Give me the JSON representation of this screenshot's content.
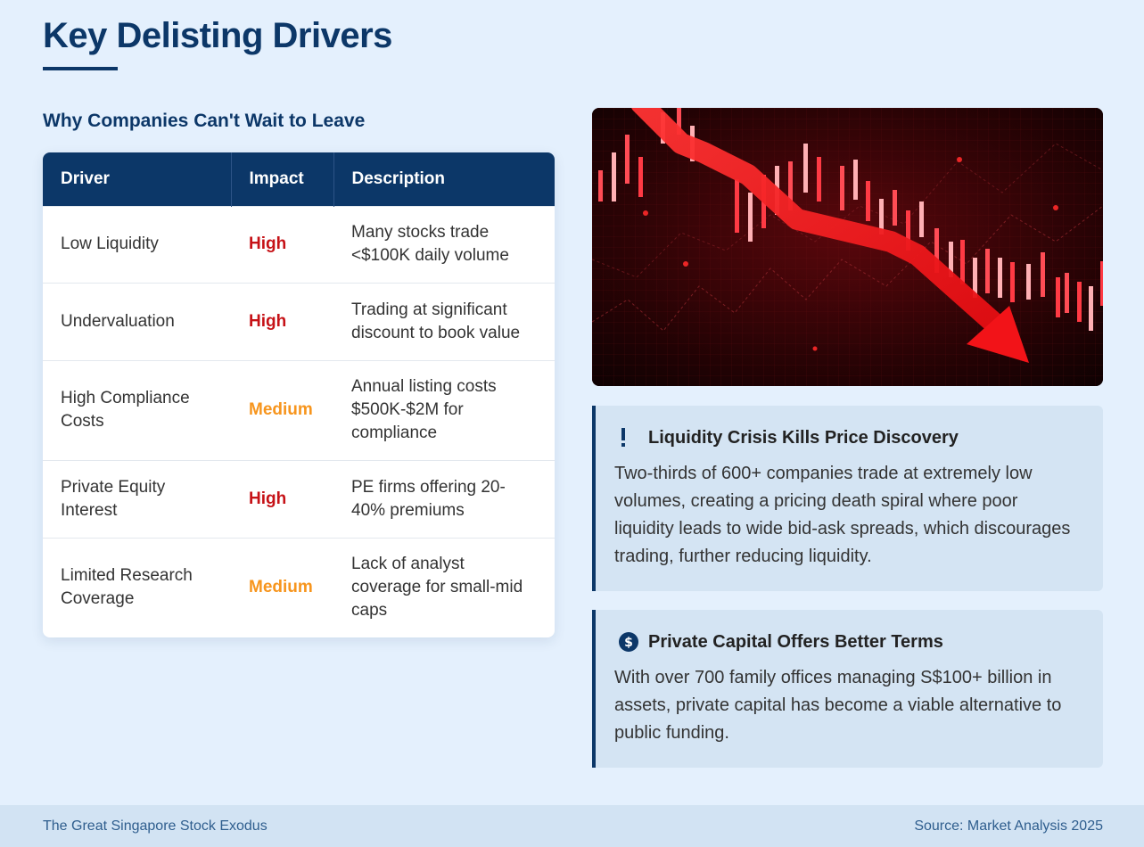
{
  "page": {
    "title": "Key Delisting Drivers",
    "section_heading": "Why Companies Can't Wait to Leave"
  },
  "table": {
    "headers": [
      "Driver",
      "Impact",
      "Description"
    ],
    "rows": [
      {
        "driver": "Low Liquidity",
        "impact": "High",
        "description": "Many stocks trade <$100K daily volume"
      },
      {
        "driver": "Undervaluation",
        "impact": "High",
        "description": "Trading at significant discount to book value"
      },
      {
        "driver": "High Compliance Costs",
        "impact": "Medium",
        "description": "Annual listing costs $500K-$2M for compliance"
      },
      {
        "driver": "Private Equity Interest",
        "impact": "High",
        "description": "PE firms offering 20-40% premiums"
      },
      {
        "driver": "Limited Research Coverage",
        "impact": "Medium",
        "description": "Lack of analyst coverage for small-mid caps"
      }
    ]
  },
  "callouts": [
    {
      "icon": "exclamation-icon",
      "title": "Liquidity Crisis Kills Price Discovery",
      "body": "Two-thirds of 600+ companies trade at extremely low volumes, creating a pricing death spiral where poor liquidity leads to wide bid-ask spreads, which discourages trading, further reducing liquidity."
    },
    {
      "icon": "dollar-circle-icon",
      "title": "Private Capital Offers Better Terms",
      "body": "With over 700 family offices managing S$100+ billion in assets, private capital has become a viable alternative to public funding."
    }
  ],
  "footer": {
    "left": "The Great Singapore Stock Exodus",
    "right": "Source: Market Analysis 2025"
  },
  "colors": {
    "primary": "#0c3768",
    "background": "#e4f0fd",
    "impact_high": "#c61217",
    "impact_medium": "#f7951d",
    "callout_bg": "#d4e4f3"
  }
}
